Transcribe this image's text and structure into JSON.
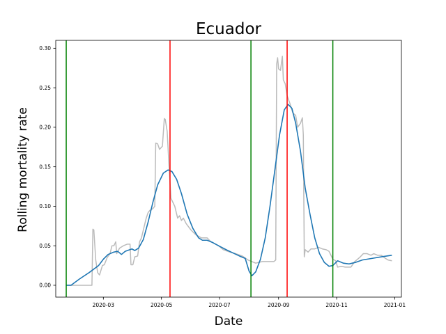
{
  "chart_data": {
    "type": "line",
    "title": "Ecuador",
    "xlabel": "Date",
    "ylabel": "Rolling mortality rate",
    "xlim": [
      "2020-01-11",
      "2021-01-08"
    ],
    "ylim": [
      -0.015,
      0.31
    ],
    "x_ticks": [
      "2020-03-01",
      "2020-05-01",
      "2020-07-01",
      "2020-09-01",
      "2020-11-01",
      "2021-01-01"
    ],
    "x_tick_labels": [
      "2020-03",
      "2020-05",
      "2020-07",
      "2020-09",
      "2020-11",
      "2021-01"
    ],
    "y_ticks": [
      0.0,
      0.05,
      0.1,
      0.15,
      0.2,
      0.25,
      0.3
    ],
    "y_tick_labels": [
      "0.00",
      "0.05",
      "0.10",
      "0.15",
      "0.20",
      "0.25",
      "0.30"
    ],
    "grid": false,
    "series": [
      {
        "color": "#bbbbbb",
        "points": [
          [
            "2020-01-22",
            0.0
          ],
          [
            "2020-02-18",
            0.0
          ],
          [
            "2020-02-19",
            0.071
          ],
          [
            "2020-02-20",
            0.07
          ],
          [
            "2020-02-22",
            0.032
          ],
          [
            "2020-02-24",
            0.016
          ],
          [
            "2020-02-26",
            0.013
          ],
          [
            "2020-02-29",
            0.025
          ],
          [
            "2020-03-02",
            0.026
          ],
          [
            "2020-03-05",
            0.035
          ],
          [
            "2020-03-08",
            0.04
          ],
          [
            "2020-03-10",
            0.05
          ],
          [
            "2020-03-12",
            0.05
          ],
          [
            "2020-03-14",
            0.055
          ],
          [
            "2020-03-15",
            0.04
          ],
          [
            "2020-03-18",
            0.047
          ],
          [
            "2020-03-22",
            0.05
          ],
          [
            "2020-03-26",
            0.052
          ],
          [
            "2020-03-29",
            0.052
          ],
          [
            "2020-03-30",
            0.026
          ],
          [
            "2020-04-01",
            0.026
          ],
          [
            "2020-04-03",
            0.036
          ],
          [
            "2020-04-06",
            0.037
          ],
          [
            "2020-04-08",
            0.055
          ],
          [
            "2020-04-10",
            0.06
          ],
          [
            "2020-04-13",
            0.075
          ],
          [
            "2020-04-15",
            0.085
          ],
          [
            "2020-04-17",
            0.092
          ],
          [
            "2020-04-19",
            0.095
          ],
          [
            "2020-04-22",
            0.097
          ],
          [
            "2020-04-24",
            0.1
          ],
          [
            "2020-04-25",
            0.18
          ],
          [
            "2020-04-27",
            0.179
          ],
          [
            "2020-04-29",
            0.172
          ],
          [
            "2020-05-02",
            0.176
          ],
          [
            "2020-05-04",
            0.211
          ],
          [
            "2020-05-05",
            0.21
          ],
          [
            "2020-05-07",
            0.195
          ],
          [
            "2020-05-09",
            0.15
          ],
          [
            "2020-05-11",
            0.11
          ],
          [
            "2020-05-13",
            0.105
          ],
          [
            "2020-05-15",
            0.1
          ],
          [
            "2020-05-18",
            0.085
          ],
          [
            "2020-05-20",
            0.088
          ],
          [
            "2020-05-22",
            0.082
          ],
          [
            "2020-05-24",
            0.085
          ],
          [
            "2020-05-27",
            0.078
          ],
          [
            "2020-06-01",
            0.07
          ],
          [
            "2020-06-06",
            0.064
          ],
          [
            "2020-06-12",
            0.06
          ],
          [
            "2020-06-18",
            0.06
          ],
          [
            "2020-06-22",
            0.055
          ],
          [
            "2020-06-30",
            0.05
          ],
          [
            "2020-07-05",
            0.045
          ],
          [
            "2020-07-12",
            0.042
          ],
          [
            "2020-07-18",
            0.04
          ],
          [
            "2020-07-25",
            0.037
          ],
          [
            "2020-07-31",
            0.032
          ],
          [
            "2020-08-08",
            0.028
          ],
          [
            "2020-08-15",
            0.03
          ],
          [
            "2020-08-22",
            0.03
          ],
          [
            "2020-08-27",
            0.03
          ],
          [
            "2020-08-29",
            0.032
          ],
          [
            "2020-08-30",
            0.28
          ],
          [
            "2020-08-31",
            0.288
          ],
          [
            "2020-09-01",
            0.274
          ],
          [
            "2020-09-03",
            0.272
          ],
          [
            "2020-09-05",
            0.29
          ],
          [
            "2020-09-06",
            0.26
          ],
          [
            "2020-09-08",
            0.255
          ],
          [
            "2020-09-10",
            0.24
          ],
          [
            "2020-09-13",
            0.23
          ],
          [
            "2020-09-16",
            0.218
          ],
          [
            "2020-09-19",
            0.215
          ],
          [
            "2020-09-21",
            0.2
          ],
          [
            "2020-09-24",
            0.205
          ],
          [
            "2020-09-26",
            0.212
          ],
          [
            "2020-09-27",
            0.19
          ],
          [
            "2020-09-28",
            0.036
          ],
          [
            "2020-09-29",
            0.045
          ],
          [
            "2020-10-02",
            0.042
          ],
          [
            "2020-10-05",
            0.046
          ],
          [
            "2020-10-09",
            0.046
          ],
          [
            "2020-10-13",
            0.048
          ],
          [
            "2020-10-17",
            0.046
          ],
          [
            "2020-10-21",
            0.045
          ],
          [
            "2020-10-24",
            0.043
          ],
          [
            "2020-10-28",
            0.033
          ],
          [
            "2020-10-31",
            0.031
          ],
          [
            "2020-11-02",
            0.023
          ],
          [
            "2020-11-06",
            0.024
          ],
          [
            "2020-11-10",
            0.023
          ],
          [
            "2020-11-16",
            0.023
          ],
          [
            "2020-11-20",
            0.03
          ],
          [
            "2020-11-25",
            0.035
          ],
          [
            "2020-11-29",
            0.04
          ],
          [
            "2020-12-03",
            0.04
          ],
          [
            "2020-12-07",
            0.038
          ],
          [
            "2020-12-10",
            0.04
          ],
          [
            "2020-12-14",
            0.038
          ],
          [
            "2020-12-18",
            0.038
          ],
          [
            "2020-12-21",
            0.035
          ],
          [
            "2020-12-25",
            0.032
          ],
          [
            "2020-12-29",
            0.031
          ]
        ]
      },
      {
        "color": "#1f77b4",
        "points": [
          [
            "2020-01-22",
            0.0
          ],
          [
            "2020-01-27",
            0.0
          ],
          [
            "2020-02-05",
            0.008
          ],
          [
            "2020-02-15",
            0.016
          ],
          [
            "2020-02-25",
            0.025
          ],
          [
            "2020-03-01",
            0.033
          ],
          [
            "2020-03-06",
            0.039
          ],
          [
            "2020-03-12",
            0.042
          ],
          [
            "2020-03-16",
            0.043
          ],
          [
            "2020-03-20",
            0.039
          ],
          [
            "2020-03-24",
            0.043
          ],
          [
            "2020-03-31",
            0.046
          ],
          [
            "2020-04-03",
            0.044
          ],
          [
            "2020-04-07",
            0.047
          ],
          [
            "2020-04-12",
            0.058
          ],
          [
            "2020-04-17",
            0.08
          ],
          [
            "2020-04-22",
            0.105
          ],
          [
            "2020-04-27",
            0.127
          ],
          [
            "2020-05-03",
            0.142
          ],
          [
            "2020-05-08",
            0.146
          ],
          [
            "2020-05-12",
            0.144
          ],
          [
            "2020-05-17",
            0.134
          ],
          [
            "2020-05-22",
            0.116
          ],
          [
            "2020-05-28",
            0.09
          ],
          [
            "2020-06-03",
            0.072
          ],
          [
            "2020-06-09",
            0.06
          ],
          [
            "2020-06-13",
            0.057
          ],
          [
            "2020-06-18",
            0.057
          ],
          [
            "2020-06-24",
            0.054
          ],
          [
            "2020-06-30",
            0.05
          ],
          [
            "2020-07-08",
            0.045
          ],
          [
            "2020-07-15",
            0.041
          ],
          [
            "2020-07-22",
            0.037
          ],
          [
            "2020-07-28",
            0.034
          ],
          [
            "2020-08-01",
            0.018
          ],
          [
            "2020-08-04",
            0.012
          ],
          [
            "2020-08-08",
            0.017
          ],
          [
            "2020-08-13",
            0.033
          ],
          [
            "2020-08-18",
            0.06
          ],
          [
            "2020-08-23",
            0.1
          ],
          [
            "2020-08-28",
            0.145
          ],
          [
            "2020-09-02",
            0.19
          ],
          [
            "2020-09-07",
            0.222
          ],
          [
            "2020-09-11",
            0.229
          ],
          [
            "2020-09-15",
            0.224
          ],
          [
            "2020-09-19",
            0.205
          ],
          [
            "2020-09-24",
            0.17
          ],
          [
            "2020-09-29",
            0.123
          ],
          [
            "2020-10-04",
            0.09
          ],
          [
            "2020-10-09",
            0.06
          ],
          [
            "2020-10-14",
            0.04
          ],
          [
            "2020-10-19",
            0.029
          ],
          [
            "2020-10-24",
            0.024
          ],
          [
            "2020-10-28",
            0.025
          ],
          [
            "2020-11-02",
            0.031
          ],
          [
            "2020-11-08",
            0.028
          ],
          [
            "2020-11-14",
            0.027
          ],
          [
            "2020-11-21",
            0.029
          ],
          [
            "2020-11-28",
            0.032
          ],
          [
            "2020-12-08",
            0.034
          ],
          [
            "2020-12-18",
            0.036
          ],
          [
            "2020-12-29",
            0.038
          ]
        ]
      }
    ],
    "vertical_lines": [
      {
        "x": "2020-01-22",
        "color": "#008000"
      },
      {
        "x": "2020-05-10",
        "color": "#ff0000"
      },
      {
        "x": "2020-08-03",
        "color": "#008000"
      },
      {
        "x": "2020-09-10",
        "color": "#ff0000"
      },
      {
        "x": "2020-10-28",
        "color": "#008000"
      }
    ]
  }
}
